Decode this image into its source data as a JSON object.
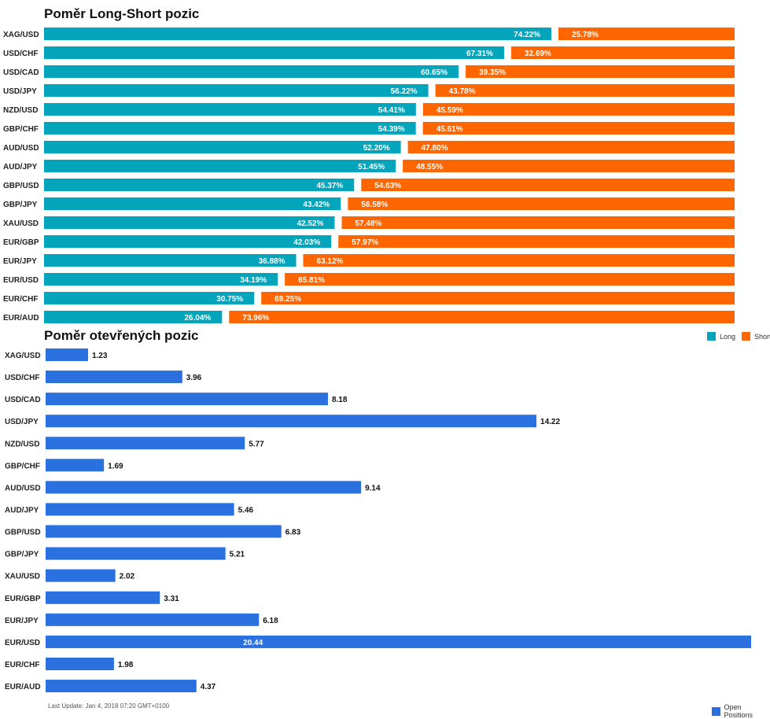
{
  "colors": {
    "long": "#03a5bd",
    "short": "#ff6600",
    "open": "#2a70de"
  },
  "legend1": {
    "long": "Long",
    "short": "Short"
  },
  "legend2": {
    "open": "Open Positions"
  },
  "footer": "Last Update: Jan 4, 2018 07:20 GMT+0100",
  "chart_data": [
    {
      "type": "bar",
      "stacked": true,
      "orientation": "horizontal",
      "title": "Poměr Long-Short pozic",
      "categories": [
        "XAG/USD",
        "USD/CHF",
        "USD/CAD",
        "USD/JPY",
        "NZD/USD",
        "GBP/CHF",
        "AUD/USD",
        "AUD/JPY",
        "GBP/USD",
        "GBP/JPY",
        "XAU/USD",
        "EUR/GBP",
        "EUR/JPY",
        "EUR/USD",
        "EUR/CHF",
        "EUR/AUD"
      ],
      "series": [
        {
          "name": "Long",
          "values": [
            74.22,
            67.31,
            60.65,
            56.22,
            54.41,
            54.39,
            52.2,
            51.45,
            45.37,
            43.42,
            42.52,
            42.03,
            36.88,
            34.19,
            30.75,
            26.04
          ],
          "labels": [
            "74.22%",
            "67.31%",
            "60.65%",
            "56.22%",
            "54.41%",
            "54.39%",
            "52.20%",
            "51.45%",
            "45.37%",
            "43.42%",
            "42.52%",
            "42.03%",
            "36.88%",
            "34.19%",
            "30.75%",
            "26.04%"
          ]
        },
        {
          "name": "Short",
          "values": [
            25.78,
            32.69,
            39.35,
            43.78,
            45.59,
            45.61,
            47.8,
            48.55,
            54.63,
            56.58,
            57.48,
            57.97,
            63.12,
            65.81,
            69.25,
            73.96
          ],
          "labels": [
            "25.78%",
            "32.69%",
            "39.35%",
            "43.78%",
            "45.59%",
            "45.61%",
            "47.80%",
            "48.55%",
            "54.63%",
            "56.58%",
            "57.48%",
            "57.97%",
            "63.12%",
            "65.81%",
            "69.25%",
            "73.96%"
          ]
        }
      ],
      "legend": "bottom-right"
    },
    {
      "type": "bar",
      "orientation": "horizontal",
      "title": "Poměr otevřených pozic",
      "categories": [
        "XAG/USD",
        "USD/CHF",
        "USD/CAD",
        "USD/JPY",
        "NZD/USD",
        "GBP/CHF",
        "AUD/USD",
        "AUD/JPY",
        "GBP/USD",
        "GBP/JPY",
        "XAU/USD",
        "EUR/GBP",
        "EUR/JPY",
        "EUR/USD",
        "EUR/CHF",
        "EUR/AUD"
      ],
      "series": [
        {
          "name": "Open Positions",
          "values": [
            1.23,
            3.96,
            8.18,
            14.22,
            5.77,
            1.69,
            9.14,
            5.46,
            6.83,
            5.21,
            2.02,
            3.31,
            6.18,
            20.44,
            1.98,
            4.37
          ],
          "labels": [
            "1.23",
            "3.96",
            "8.18",
            "14.22",
            "5.77",
            "1.69",
            "9.14",
            "5.46",
            "6.83",
            "5.21",
            "2.02",
            "3.31",
            "6.18",
            "20.44",
            "1.98",
            "4.37"
          ]
        }
      ],
      "legend": "bottom-right"
    }
  ]
}
